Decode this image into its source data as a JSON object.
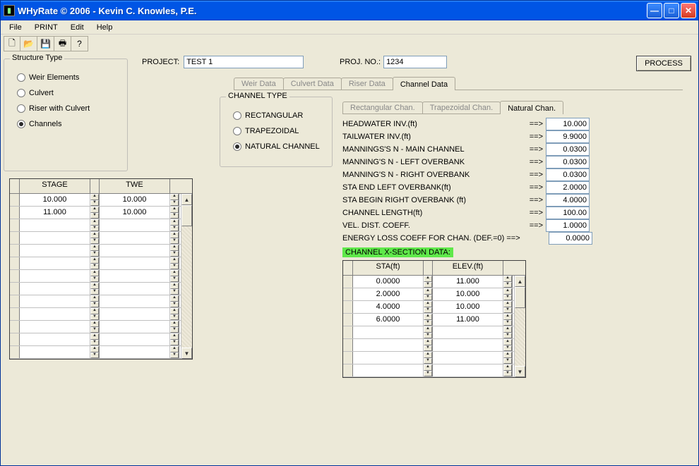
{
  "window": {
    "title": "WHyRate © 2006 - Kevin C. Knowles, P.E."
  },
  "menu": [
    "File",
    "PRINT",
    "Edit",
    "Help"
  ],
  "toolbar_icons": [
    "new",
    "open",
    "save",
    "print",
    "help"
  ],
  "project": {
    "label": "PROJECT:",
    "value": "TEST 1"
  },
  "proj_no": {
    "label": "PROJ. NO.:",
    "value": "1234"
  },
  "process_label": "PROCESS",
  "structure_type": {
    "legend": "Structure Type",
    "options": [
      {
        "label": "Weir Elements",
        "checked": false
      },
      {
        "label": "Culvert",
        "checked": false
      },
      {
        "label": "Riser with Culvert",
        "checked": false
      },
      {
        "label": "Channels",
        "checked": true
      }
    ]
  },
  "main_tabs": [
    {
      "label": "Weir Data",
      "active": false
    },
    {
      "label": "Culvert Data",
      "active": false
    },
    {
      "label": "Riser Data",
      "active": false
    },
    {
      "label": "Channel Data",
      "active": true
    }
  ],
  "channel_type": {
    "legend": "CHANNEL TYPE",
    "options": [
      {
        "label": "RECTANGULAR",
        "checked": false
      },
      {
        "label": "TRAPEZOIDAL",
        "checked": false
      },
      {
        "label": "NATURAL CHANNEL",
        "checked": true
      }
    ]
  },
  "chan_tabs": [
    {
      "label": "Rectangular Chan.",
      "active": false
    },
    {
      "label": "Trapezoidal Chan.",
      "active": false
    },
    {
      "label": "Natural Chan.",
      "active": true
    }
  ],
  "params": [
    {
      "label": "HEADWATER INV.(ft)",
      "value": "10.000"
    },
    {
      "label": "TAILWATER INV.(ft)",
      "value": "9.9000"
    },
    {
      "label": "MANNINGS'S N - MAIN CHANNEL",
      "value": "0.0300"
    },
    {
      "label": "MANNING'S N - LEFT OVERBANK",
      "value": "0.0300"
    },
    {
      "label": "MANNING'S N - RIGHT OVERBANK",
      "value": "0.0300"
    },
    {
      "label": "STA END LEFT OVERBANK(ft)",
      "value": "2.0000"
    },
    {
      "label": "STA BEGIN RIGHT OVERBANK (ft)",
      "value": "4.0000"
    },
    {
      "label": "CHANNEL LENGTH(ft)",
      "value": "100.00"
    },
    {
      "label": "VEL. DIST. COEFF.",
      "value": "1.0000"
    },
    {
      "label": "ENERGY LOSS COEFF FOR CHAN. (DEF.=0) ==>",
      "value": "0.0000",
      "noarrow": true
    }
  ],
  "xsec_label": "CHANNEL X-SECTION DATA:",
  "stage_table": {
    "headers": [
      "STAGE",
      "TWE"
    ],
    "rows": [
      [
        "10.000",
        "10.000"
      ],
      [
        "11.000",
        "10.000"
      ],
      [
        "",
        ""
      ],
      [
        "",
        ""
      ],
      [
        "",
        ""
      ],
      [
        "",
        ""
      ],
      [
        "",
        ""
      ],
      [
        "",
        ""
      ],
      [
        "",
        ""
      ],
      [
        "",
        ""
      ],
      [
        "",
        ""
      ],
      [
        "",
        ""
      ],
      [
        "",
        ""
      ]
    ]
  },
  "xsec_table": {
    "headers": [
      "STA(ft)",
      "ELEV.(ft)"
    ],
    "rows": [
      [
        "0.0000",
        "11.000"
      ],
      [
        "2.0000",
        "10.000"
      ],
      [
        "4.0000",
        "10.000"
      ],
      [
        "6.0000",
        "11.000"
      ],
      [
        "",
        ""
      ],
      [
        "",
        ""
      ],
      [
        "",
        ""
      ],
      [
        "",
        ""
      ]
    ]
  },
  "colors": {
    "titlebar": "#0055e5",
    "client_bg": "#ece9d8",
    "highlight": "#5fe84a",
    "input_border": "#7f9db9"
  }
}
